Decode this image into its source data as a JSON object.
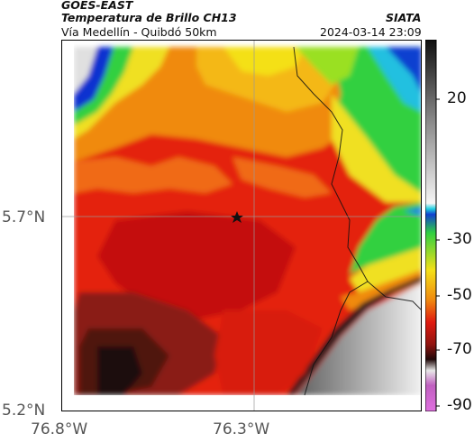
{
  "header": {
    "satellite": "GOES-EAST",
    "product": "Temperatura de Brillo CH13",
    "institution": "SIATA",
    "route": "Vía Medellín - Quibdó 50km",
    "timestamp": "2024-03-14 23:09"
  },
  "axes": {
    "y_ticks": [
      "5.7°N",
      "5.2°N"
    ],
    "x_ticks": [
      "76.8°W",
      "76.3°W"
    ]
  },
  "colorbar": {
    "labels": [
      "20",
      "-30",
      "-50",
      "-70",
      "-90"
    ],
    "unit": ""
  },
  "map": {
    "marker": "star-icon",
    "center_lat": 5.7,
    "center_lon": -76.3
  },
  "colors": {
    "cold": "#1a0a0a",
    "red": "#e01a10",
    "orange": "#f07a10",
    "yellow": "#f4e010",
    "green": "#30d030",
    "blue": "#1060e0",
    "warm_gray": "#a0a0a0"
  }
}
